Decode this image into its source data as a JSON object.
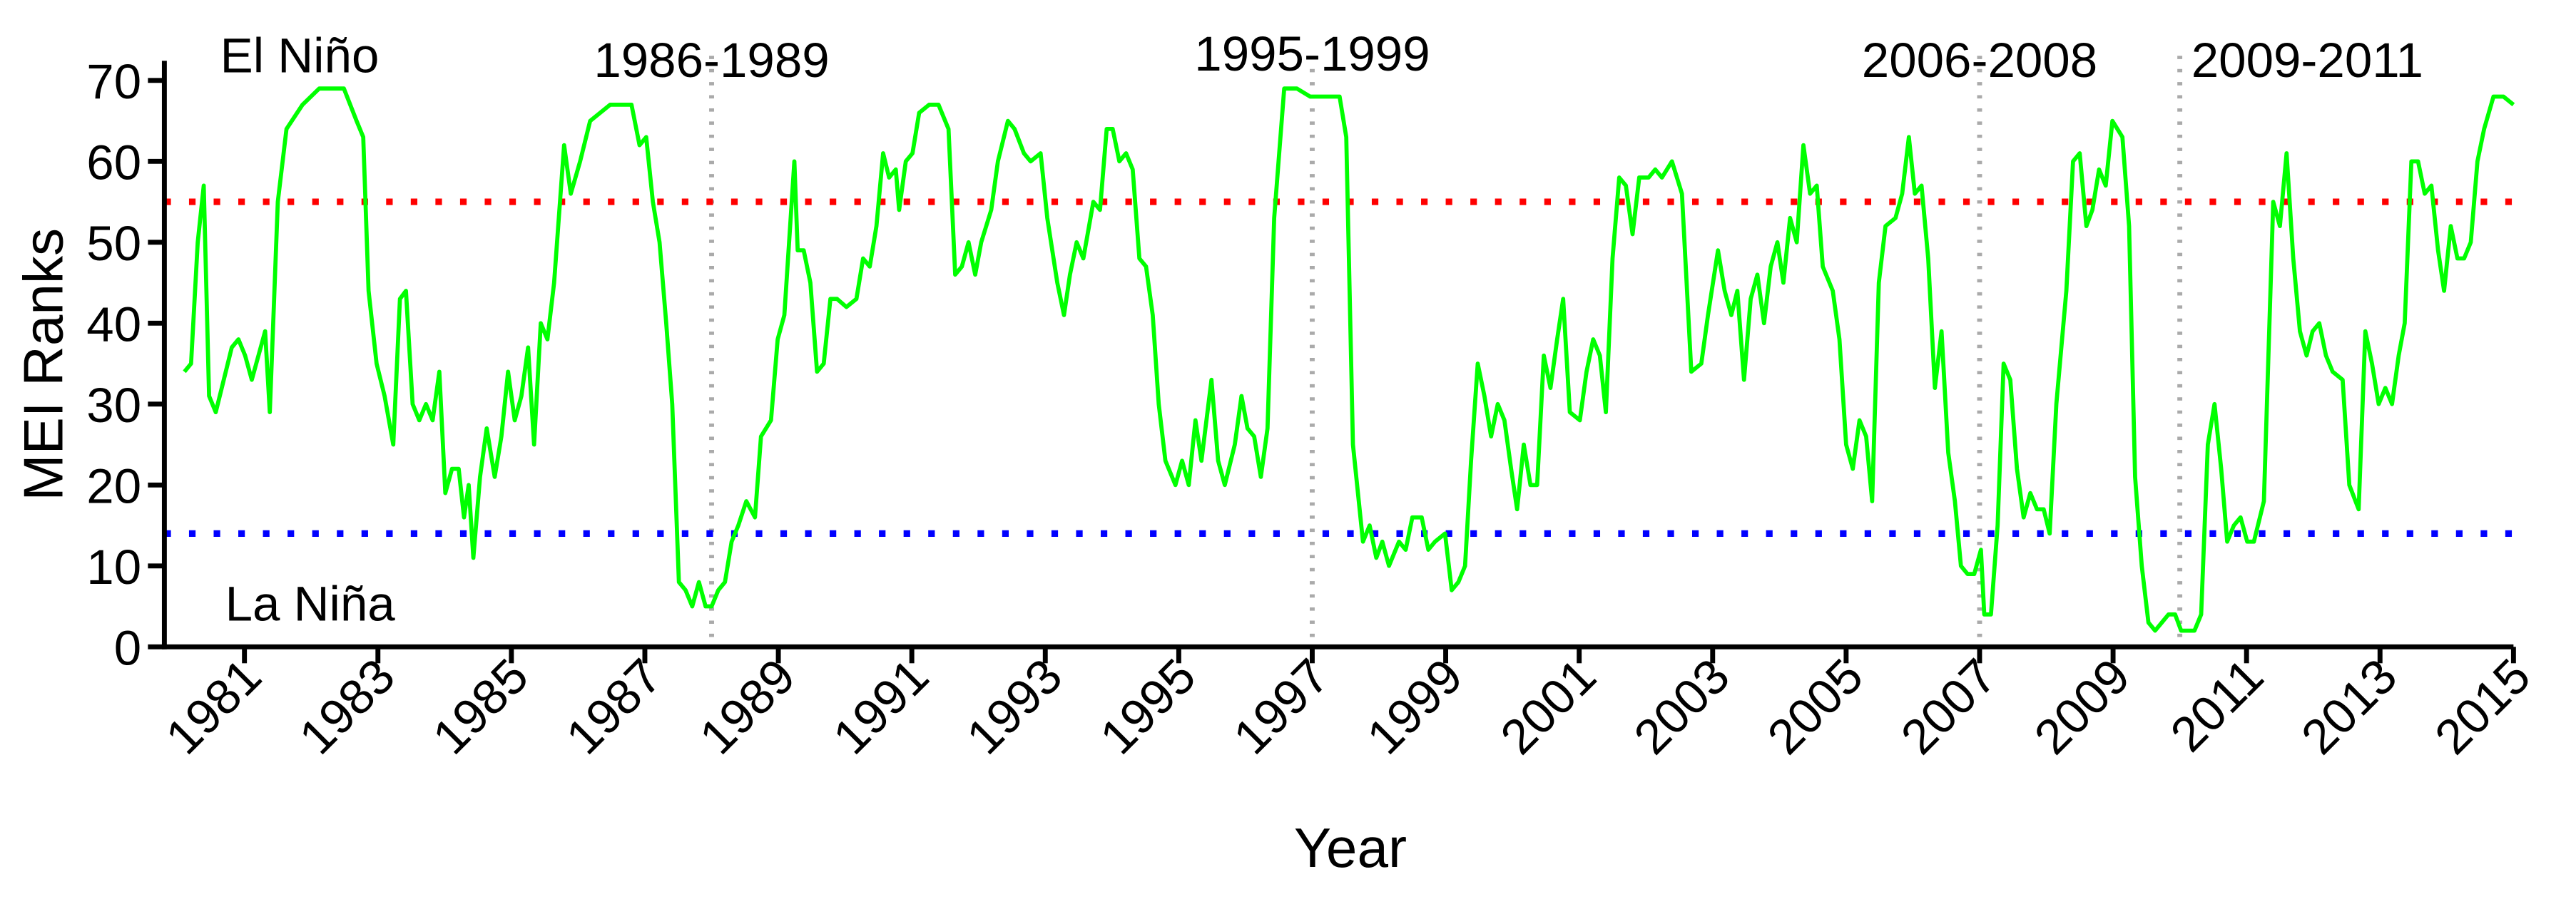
{
  "chart_data": {
    "type": "line",
    "xlabel": "Year",
    "ylabel": "MEI Ranks",
    "color": "#00ff00",
    "annotations": [
      "El Niño",
      "La Niña"
    ],
    "periods": [
      {
        "label": "1986-1989",
        "x": 1988
      },
      {
        "label": "1995-1999",
        "x": 1997
      },
      {
        "label": "2006-2008",
        "x": 2007
      },
      {
        "label": "2009-2011",
        "x": 2010
      }
    ],
    "vline_color": "#aaaaaa",
    "hlines": [
      {
        "value": 55,
        "color": "#ff0000"
      },
      {
        "value": 14,
        "color": "#0000ff"
      }
    ],
    "xlim": [
      1979.8,
      2015
    ],
    "ylim": [
      0,
      70
    ],
    "xticks": [
      1981,
      1983,
      1985,
      1987,
      1989,
      1991,
      1993,
      1995,
      1997,
      1999,
      2001,
      2003,
      2005,
      2007,
      2009,
      2011,
      2013,
      2015
    ],
    "yticks": [
      0,
      10,
      20,
      30,
      40,
      50,
      60,
      70
    ],
    "x": [
      1980.1,
      1980.2,
      1980.3,
      1980.39,
      1980.47,
      1980.57,
      1980.66,
      1980.81,
      1980.91,
      1981.01,
      1981.11,
      1981.21,
      1981.31,
      1981.38,
      1981.5,
      1981.63,
      1981.87,
      1982.12,
      1982.49,
      1982.68,
      1982.78,
      1982.86,
      1982.98,
      1983.1,
      1983.23,
      1983.33,
      1983.42,
      1983.52,
      1983.62,
      1983.72,
      1983.82,
      1983.92,
      1984.01,
      1984.11,
      1984.21,
      1984.29,
      1984.36,
      1984.43,
      1984.53,
      1984.63,
      1984.75,
      1984.85,
      1984.95,
      1985.05,
      1985.15,
      1985.25,
      1985.34,
      1985.44,
      1985.54,
      1985.64,
      1985.79,
      1985.89,
      1986.03,
      1986.18,
      1986.33,
      1986.48,
      1986.63,
      1986.8,
      1986.92,
      1987.02,
      1987.12,
      1987.22,
      1987.32,
      1987.41,
      1987.51,
      1987.61,
      1987.71,
      1987.81,
      1987.91,
      1988.0,
      1988.1,
      1988.2,
      1988.3,
      1988.4,
      1988.52,
      1988.65,
      1988.74,
      1988.89,
      1988.99,
      1989.09,
      1989.24,
      1989.29,
      1989.38,
      1989.48,
      1989.58,
      1989.68,
      1989.78,
      1989.88,
      1990.02,
      1990.17,
      1990.27,
      1990.37,
      1990.47,
      1990.57,
      1990.66,
      1990.76,
      1990.81,
      1990.91,
      1991.01,
      1991.11,
      1991.26,
      1991.4,
      1991.55,
      1991.65,
      1991.75,
      1991.85,
      1991.95,
      1992.04,
      1992.19,
      1992.29,
      1992.44,
      1992.54,
      1992.68,
      1992.78,
      1992.93,
      1993.03,
      1993.18,
      1993.28,
      1993.37,
      1993.47,
      1993.57,
      1993.72,
      1993.82,
      1993.92,
      1994.01,
      1994.11,
      1994.21,
      1994.31,
      1994.41,
      1994.51,
      1994.61,
      1994.7,
      1994.8,
      1994.95,
      1995.05,
      1995.15,
      1995.25,
      1995.34,
      1995.49,
      1995.59,
      1995.69,
      1995.84,
      1995.94,
      1996.03,
      1996.13,
      1996.23,
      1996.33,
      1996.43,
      1996.58,
      1996.77,
      1996.97,
      1997.17,
      1997.41,
      1997.51,
      1997.61,
      1997.76,
      1997.86,
      1997.96,
      1998.05,
      1998.15,
      1998.3,
      1998.4,
      1998.5,
      1998.64,
      1998.74,
      1998.84,
      1998.99,
      1999.09,
      1999.19,
      1999.29,
      1999.38,
      1999.48,
      1999.58,
      1999.68,
      1999.78,
      1999.88,
      1999.98,
      2000.07,
      2000.17,
      2000.27,
      2000.37,
      2000.47,
      2000.57,
      2000.67,
      2000.76,
      2000.86,
      2001.01,
      2001.11,
      2001.21,
      2001.31,
      2001.4,
      2001.5,
      2001.6,
      2001.7,
      2001.8,
      2001.9,
      2002.04,
      2002.14,
      2002.24,
      2002.39,
      2002.54,
      2002.68,
      2002.83,
      2002.93,
      2003.08,
      2003.18,
      2003.28,
      2003.37,
      2003.47,
      2003.57,
      2003.67,
      2003.77,
      2003.87,
      2003.97,
      2004.06,
      2004.16,
      2004.26,
      2004.36,
      2004.46,
      2004.56,
      2004.65,
      2004.8,
      2004.9,
      2005.0,
      2005.1,
      2005.2,
      2005.3,
      2005.39,
      2005.49,
      2005.59,
      2005.74,
      2005.84,
      2005.94,
      2006.03,
      2006.13,
      2006.23,
      2006.33,
      2006.43,
      2006.53,
      2006.63,
      2006.72,
      2006.82,
      2006.92,
      2007.02,
      2007.07,
      2007.17,
      2007.27,
      2007.36,
      2007.46,
      2007.56,
      2007.66,
      2007.76,
      2007.86,
      2007.96,
      2008.05,
      2008.15,
      2008.3,
      2008.4,
      2008.5,
      2008.6,
      2008.69,
      2008.79,
      2008.89,
      2008.99,
      2009.14,
      2009.24,
      2009.33,
      2009.43,
      2009.53,
      2009.63,
      2009.73,
      2009.83,
      2009.93,
      2010.02,
      2010.12,
      2010.22,
      2010.32,
      2010.42,
      2010.52,
      2010.62,
      2010.71,
      2010.81,
      2010.91,
      2011.01,
      2011.11,
      2011.26,
      2011.4,
      2011.5,
      2011.6,
      2011.7,
      2011.8,
      2011.9,
      2011.99,
      2012.09,
      2012.19,
      2012.29,
      2012.44,
      2012.54,
      2012.68,
      2012.78,
      2012.88,
      2012.98,
      2013.08,
      2013.18,
      2013.28,
      2013.37,
      2013.47,
      2013.57,
      2013.67,
      2013.77,
      2013.87,
      2013.96,
      2014.06,
      2014.16,
      2014.26,
      2014.36,
      2014.46,
      2014.56,
      2014.7,
      2014.85,
      2015.0
    ],
    "values": [
      34,
      35,
      50,
      57,
      31,
      29,
      32,
      37,
      38,
      36,
      33,
      36,
      39,
      29,
      55,
      64,
      67,
      69,
      69,
      65,
      63,
      44,
      35,
      31,
      25,
      43,
      44,
      30,
      28,
      30,
      28,
      34,
      19,
      22,
      22,
      16,
      20,
      11,
      21,
      27,
      21,
      26,
      34,
      28,
      31,
      37,
      25,
      40,
      38,
      45,
      62,
      56,
      60,
      65,
      66,
      67,
      67,
      67,
      62,
      63,
      55,
      50,
      40,
      30,
      8,
      7,
      5,
      8,
      5,
      5,
      7,
      8,
      13,
      15,
      18,
      16,
      26,
      28,
      38,
      41,
      60,
      49,
      49,
      45,
      34,
      35,
      43,
      43,
      42,
      43,
      48,
      47,
      52,
      61,
      58,
      59,
      54,
      60,
      61,
      66,
      67,
      67,
      64,
      46,
      47,
      50,
      46,
      50,
      54,
      60,
      65,
      64,
      61,
      60,
      61,
      53,
      45,
      41,
      46,
      50,
      48,
      55,
      54,
      64,
      64,
      60,
      61,
      59,
      48,
      47,
      41,
      30,
      23,
      20,
      23,
      20,
      28,
      23,
      33,
      23,
      20,
      25,
      31,
      27,
      26,
      21,
      27,
      53,
      69,
      69,
      68,
      68,
      68,
      63,
      25,
      13,
      15,
      11,
      13,
      10,
      13,
      12,
      16,
      16,
      12,
      13,
      14,
      7,
      8,
      10,
      23,
      35,
      31,
      26,
      30,
      28,
      22,
      17,
      25,
      20,
      20,
      36,
      32,
      38,
      43,
      29,
      28,
      34,
      38,
      36,
      29,
      48,
      58,
      57,
      51,
      58,
      58,
      59,
      58,
      60,
      56,
      34,
      35,
      41,
      49,
      44,
      41,
      44,
      33,
      43,
      46,
      40,
      47,
      50,
      45,
      53,
      50,
      62,
      56,
      57,
      47,
      44,
      38,
      25,
      22,
      28,
      26,
      18,
      45,
      52,
      53,
      56,
      63,
      56,
      57,
      48,
      32,
      39,
      24,
      18,
      10,
      9,
      9,
      12,
      4,
      4,
      15,
      35,
      33,
      22,
      16,
      19,
      17,
      17,
      14,
      30,
      44,
      60,
      61,
      52,
      54,
      59,
      57,
      65,
      63,
      52,
      21,
      10,
      3,
      2,
      3,
      4,
      4,
      2,
      2,
      2,
      4,
      25,
      30,
      22,
      13,
      15,
      16,
      13,
      13,
      18,
      55,
      52,
      61,
      48,
      39,
      36,
      39,
      40,
      36,
      34,
      33,
      20,
      17,
      39,
      35,
      30,
      32,
      30,
      36,
      40,
      60,
      60,
      56,
      57,
      49,
      44,
      52,
      48,
      48,
      50,
      60,
      64,
      68,
      68,
      67
    ]
  }
}
